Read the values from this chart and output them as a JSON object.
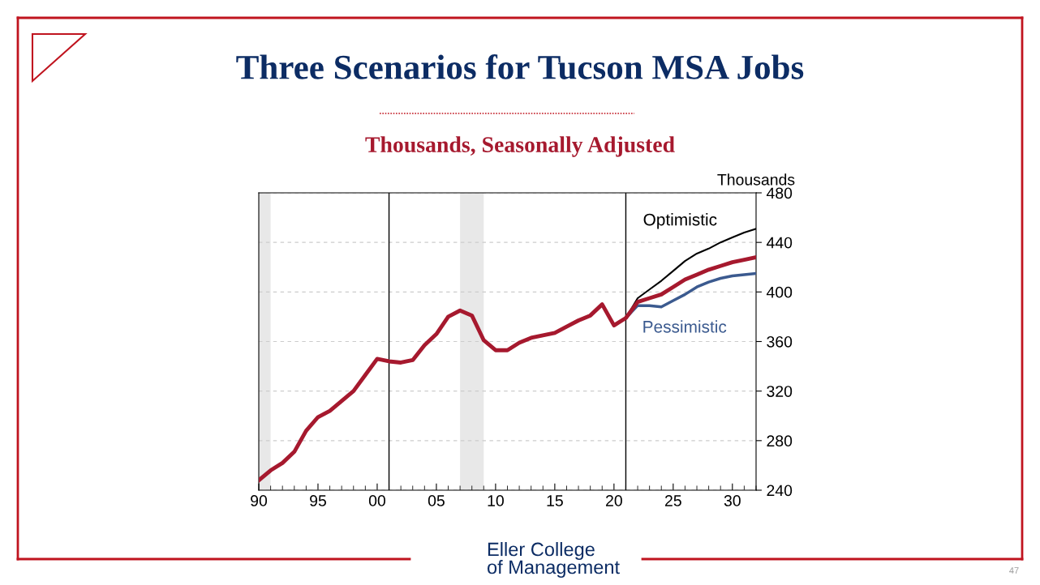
{
  "chart_data": {
    "type": "line",
    "title": "Three Scenarios for Tucson MSA Jobs",
    "subtitle": "Thousands, Seasonally Adjusted",
    "ylabel": "Thousands",
    "x": [
      1990,
      1991,
      1992,
      1993,
      1994,
      1995,
      1996,
      1997,
      1998,
      1999,
      2000,
      2001,
      2002,
      2003,
      2004,
      2005,
      2006,
      2007,
      2008,
      2009,
      2010,
      2011,
      2012,
      2013,
      2014,
      2015,
      2016,
      2017,
      2018,
      2019,
      2020,
      2021,
      2022,
      2023,
      2024,
      2025,
      2026,
      2027,
      2028,
      2029,
      2030,
      2031,
      2032
    ],
    "series": [
      {
        "color": "#000000",
        "name": "Optimistic",
        "x": [
          2021,
          2022,
          2023,
          2024,
          2025,
          2026,
          2027,
          2028,
          2029,
          2030,
          2031,
          2032
        ],
        "values": [
          379,
          395,
          402,
          409,
          417,
          425,
          431,
          435,
          440,
          444,
          448,
          451
        ]
      },
      {
        "color": "#3b5a8f",
        "name": "Pessimistic",
        "x": [
          2021,
          2022,
          2023,
          2024,
          2025,
          2026,
          2027,
          2028,
          2029,
          2030,
          2031,
          2032
        ],
        "values": [
          379,
          389,
          389,
          388,
          393,
          398,
          404,
          408,
          411,
          413,
          414,
          415
        ]
      },
      {
        "color": "#a6192e",
        "values": [
          248,
          256,
          262,
          271,
          288,
          299,
          304,
          312,
          320,
          333,
          346,
          344,
          343,
          345,
          357,
          366,
          380,
          385,
          381,
          361,
          353,
          353,
          359,
          363,
          365,
          367,
          372,
          377,
          381,
          390,
          373,
          379,
          392,
          395,
          398,
          404,
          410,
          414,
          418,
          421,
          424,
          426,
          428
        ]
      }
    ],
    "xlim": [
      1990,
      2032
    ],
    "ylim": [
      240,
      480
    ],
    "xticks": [
      {
        "value": 1990,
        "label": "90"
      },
      {
        "value": 1991,
        "label": null
      },
      {
        "value": 1992,
        "label": null
      },
      {
        "value": 1993,
        "label": null
      },
      {
        "value": 1994,
        "label": null
      },
      {
        "value": 1995,
        "label": "95"
      },
      {
        "value": 1996,
        "label": null
      },
      {
        "value": 1997,
        "label": null
      },
      {
        "value": 1998,
        "label": null
      },
      {
        "value": 1999,
        "label": null
      },
      {
        "value": 2000,
        "label": "00"
      },
      {
        "value": 2001,
        "label": null
      },
      {
        "value": 2002,
        "label": null
      },
      {
        "value": 2003,
        "label": null
      },
      {
        "value": 2004,
        "label": null
      },
      {
        "value": 2005,
        "label": "05"
      },
      {
        "value": 2006,
        "label": null
      },
      {
        "value": 2007,
        "label": null
      },
      {
        "value": 2008,
        "label": null
      },
      {
        "value": 2009,
        "label": null
      },
      {
        "value": 2010,
        "label": "10"
      },
      {
        "value": 2011,
        "label": null
      },
      {
        "value": 2012,
        "label": null
      },
      {
        "value": 2013,
        "label": null
      },
      {
        "value": 2014,
        "label": null
      },
      {
        "value": 2015,
        "label": "15"
      },
      {
        "value": 2016,
        "label": null
      },
      {
        "value": 2017,
        "label": null
      },
      {
        "value": 2018,
        "label": null
      },
      {
        "value": 2019,
        "label": null
      },
      {
        "value": 2020,
        "label": "20"
      },
      {
        "value": 2021,
        "label": null
      },
      {
        "value": 2022,
        "label": null
      },
      {
        "value": 2023,
        "label": null
      },
      {
        "value": 2024,
        "label": null
      },
      {
        "value": 2025,
        "label": "25"
      },
      {
        "value": 2026,
        "label": null
      },
      {
        "value": 2027,
        "label": null
      },
      {
        "value": 2028,
        "label": null
      },
      {
        "value": 2029,
        "label": null
      },
      {
        "value": 2030,
        "label": "30"
      },
      {
        "value": 2031,
        "label": null
      },
      {
        "value": 2032,
        "label": null
      }
    ],
    "yticks": [
      240,
      280,
      320,
      360,
      400,
      440,
      480
    ],
    "grid": "y",
    "legend": false,
    "marker": "none",
    "line_style": "solid",
    "ref_lines": [
      {
        "axis": "x",
        "value": 2001,
        "color": "#000000"
      },
      {
        "axis": "x",
        "value": 2021,
        "color": "#000000"
      }
    ],
    "bands": [
      {
        "axis": "x",
        "from": 1990,
        "to": 1991,
        "color": "#e8e8e8"
      },
      {
        "axis": "x",
        "from": 2007,
        "to": 2009,
        "color": "#e8e8e8"
      }
    ],
    "annotations": [
      "Eller College\nof Management",
      "47"
    ]
  }
}
